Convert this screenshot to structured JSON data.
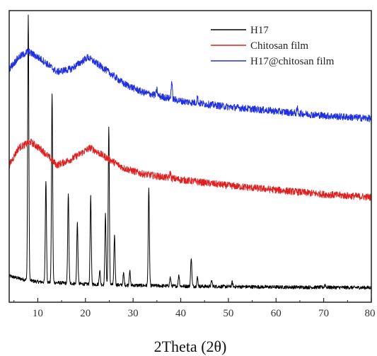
{
  "chart_data": {
    "type": "line",
    "title": "",
    "xlabel": "2Theta (2θ)",
    "ylabel": "",
    "xlim": [
      4,
      80
    ],
    "x_ticks": [
      10,
      20,
      30,
      40,
      50,
      60,
      70,
      80
    ],
    "y_ticks": [],
    "grid": false,
    "legend_position": "top-right",
    "series": [
      {
        "name": "H17",
        "color": "#000000",
        "offset": 0.05,
        "baseline": [
          [
            4,
            0.04
          ],
          [
            7,
            0.028
          ],
          [
            10,
            0.02
          ],
          [
            20,
            0.012
          ],
          [
            30,
            0.008
          ],
          [
            40,
            0.005
          ],
          [
            60,
            0.002
          ],
          [
            80,
            0
          ]
        ],
        "noise": 0.006,
        "peaks": [
          {
            "x": 8.0,
            "h": 0.91
          },
          {
            "x": 11.7,
            "h": 0.35
          },
          {
            "x": 13.0,
            "h": 0.65
          },
          {
            "x": 16.4,
            "h": 0.31
          },
          {
            "x": 18.3,
            "h": 0.21
          },
          {
            "x": 21.1,
            "h": 0.3
          },
          {
            "x": 23.0,
            "h": 0.05
          },
          {
            "x": 24.2,
            "h": 0.24
          },
          {
            "x": 24.9,
            "h": 0.54
          },
          {
            "x": 26.1,
            "h": 0.17
          },
          {
            "x": 28.0,
            "h": 0.04
          },
          {
            "x": 29.3,
            "h": 0.05
          },
          {
            "x": 33.3,
            "h": 0.33
          },
          {
            "x": 37.8,
            "h": 0.03
          },
          {
            "x": 39.6,
            "h": 0.04
          },
          {
            "x": 42.2,
            "h": 0.1
          },
          {
            "x": 43.5,
            "h": 0.03
          },
          {
            "x": 46.5,
            "h": 0.02
          },
          {
            "x": 50.8,
            "h": 0.015
          },
          {
            "x": 70.3,
            "h": 0.01
          }
        ]
      },
      {
        "name": "Chitosan film",
        "color": "#e11f1f",
        "offset": 0.35,
        "baseline": [
          [
            4,
            0.12
          ],
          [
            6,
            0.18
          ],
          [
            8.5,
            0.2
          ],
          [
            11,
            0.17
          ],
          [
            14,
            0.12
          ],
          [
            17,
            0.14
          ],
          [
            21,
            0.18
          ],
          [
            24,
            0.15
          ],
          [
            28,
            0.11
          ],
          [
            32,
            0.09
          ],
          [
            40,
            0.07
          ],
          [
            50,
            0.05
          ],
          [
            60,
            0.035
          ],
          [
            70,
            0.02
          ],
          [
            80,
            0.01
          ]
        ],
        "noise": 0.012,
        "peaks": [
          {
            "x": 37.8,
            "h": 0.02
          }
        ]
      },
      {
        "name": "H17@chitosan film",
        "color": "#1f2fe3",
        "offset": 0.62,
        "baseline": [
          [
            4,
            0.18
          ],
          [
            6,
            0.22
          ],
          [
            8,
            0.24
          ],
          [
            11,
            0.21
          ],
          [
            14,
            0.17
          ],
          [
            17,
            0.18
          ],
          [
            20.5,
            0.22
          ],
          [
            24,
            0.18
          ],
          [
            28,
            0.13
          ],
          [
            32,
            0.1
          ],
          [
            40,
            0.07
          ],
          [
            50,
            0.05
          ],
          [
            60,
            0.035
          ],
          [
            70,
            0.02
          ],
          [
            80,
            0.01
          ]
        ],
        "noise": 0.012,
        "peaks": [
          {
            "x": 35.0,
            "h": 0.02
          },
          {
            "x": 38.1,
            "h": 0.06
          },
          {
            "x": 43.5,
            "h": 0.02
          },
          {
            "x": 64.5,
            "h": 0.015
          }
        ]
      }
    ]
  }
}
